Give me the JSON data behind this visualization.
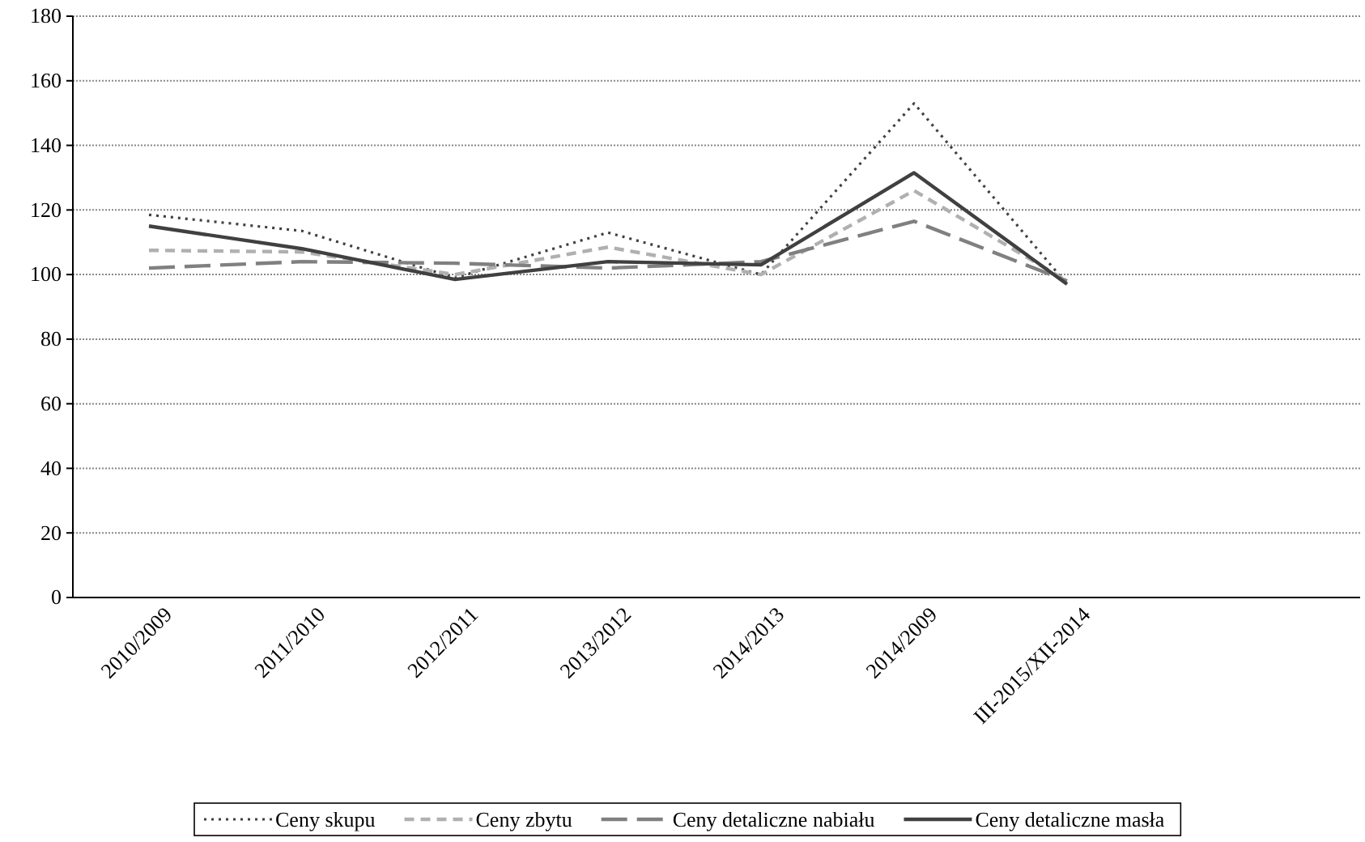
{
  "chart_data": {
    "type": "line",
    "categories": [
      "2010/2009",
      "2011/2010",
      "2012/2011",
      "2013/2012",
      "2014/2013",
      "2014/2009",
      "III-2015/XII-2014"
    ],
    "series": [
      {
        "name": "Ceny skupu",
        "color": "#404040",
        "line_style": "dotted",
        "values": [
          118.5,
          113.5,
          99,
          113,
          100,
          153,
          97
        ]
      },
      {
        "name": "Ceny zbytu",
        "color": "#b0b0b0",
        "line_style": "dashed",
        "values": [
          107.5,
          107,
          100,
          108.5,
          100,
          126,
          98
        ]
      },
      {
        "name": "Ceny detaliczne nabiału",
        "color": "#808080",
        "line_style": "dashed",
        "values": [
          102,
          104,
          103.5,
          102,
          104,
          116.5,
          98
        ]
      },
      {
        "name": "Ceny detaliczne masła",
        "color": "#404040",
        "line_style": "solid",
        "values": [
          115,
          108,
          98.5,
          104,
          103,
          131.5,
          97
        ]
      }
    ],
    "ylim": [
      0,
      180
    ],
    "yticks": [
      0,
      20,
      40,
      60,
      80,
      100,
      120,
      140,
      160,
      180
    ],
    "grid": "y",
    "legend": "bottom",
    "marker": "none"
  }
}
